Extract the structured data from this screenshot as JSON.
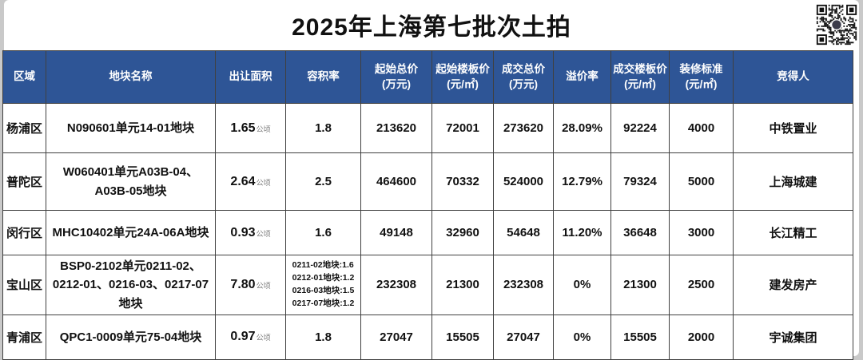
{
  "colors": {
    "header_bg": "#2e5596",
    "header_text": "#ffffff",
    "title_text": "#111111",
    "grid_line": "#404040"
  },
  "title": "2025年上海第七批次土拍",
  "icons": {
    "qr": "qr-code"
  },
  "table": {
    "area_unit": "公顷",
    "headers": [
      {
        "label": "区域"
      },
      {
        "label": "地块名称"
      },
      {
        "label": "出让面积"
      },
      {
        "label": "容积率"
      },
      {
        "label": "起始总价",
        "unit": "(万元)"
      },
      {
        "label": "起始楼板价",
        "unit": "(元/㎡)"
      },
      {
        "label": "成交总价",
        "unit": "(万元)"
      },
      {
        "label": "溢价率"
      },
      {
        "label": "成交楼板价",
        "unit": "(元/㎡)"
      },
      {
        "label": "装修标准",
        "unit": "(元/㎡)"
      },
      {
        "label": "竞得人"
      }
    ],
    "rows": [
      {
        "district": "杨浦区",
        "plot_name": "N090601单元14-01地块",
        "area": "1.65",
        "far": [
          "1.8"
        ],
        "start_total": "213620",
        "start_floor": "72001",
        "deal_total": "273620",
        "premium": "28.09%",
        "deal_floor": "92224",
        "decoration": "4000",
        "winner": "中铁置业"
      },
      {
        "district": "普陀区",
        "plot_name": "W060401单元A03B-04、A03B-05地块",
        "area": "2.64",
        "far": [
          "2.5"
        ],
        "start_total": "464600",
        "start_floor": "70332",
        "deal_total": "524000",
        "premium": "12.79%",
        "deal_floor": "79324",
        "decoration": "5000",
        "winner": "上海城建"
      },
      {
        "district": "闵行区",
        "plot_name": "MHC10402单元24A-06A地块",
        "area": "0.93",
        "far": [
          "1.6"
        ],
        "start_total": "49148",
        "start_floor": "32960",
        "deal_total": "54648",
        "premium": "11.20%",
        "deal_floor": "36648",
        "decoration": "3000",
        "winner": "长江精工"
      },
      {
        "district": "宝山区",
        "plot_name": "BSP0-2102单元0211-02、0212-01、0216-03、0217-07地块",
        "area": "7.80",
        "far": [
          "0211-02地块:1.6",
          "0212-01地块:1.2",
          "0216-03地块:1.5",
          "0217-07地块:1.2"
        ],
        "start_total": "232308",
        "start_floor": "21300",
        "deal_total": "232308",
        "premium": "0%",
        "deal_floor": "21300",
        "decoration": "2500",
        "winner": "建发房产"
      },
      {
        "district": "青浦区",
        "plot_name": "QPC1-0009单元75-04地块",
        "area": "0.97",
        "far": [
          "1.8"
        ],
        "start_total": "27047",
        "start_floor": "15505",
        "deal_total": "27047",
        "premium": "0%",
        "deal_floor": "15505",
        "decoration": "2000",
        "winner": "宇诚集团"
      }
    ]
  }
}
